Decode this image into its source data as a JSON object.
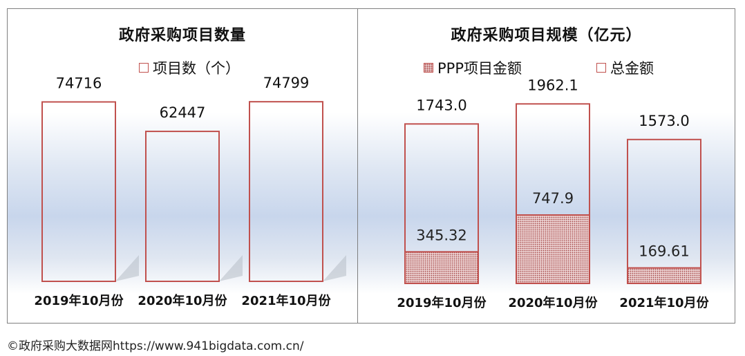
{
  "footer": {
    "text": "©政府采购大数据网https://www.941bigdata.com.cn/"
  },
  "colors": {
    "bar_outline": "#c0504d",
    "ppp_fill": "#c08080"
  },
  "chart_data": [
    {
      "type": "bar",
      "title": "政府采购项目数量",
      "categories": [
        "2019年10月份",
        "2020年10月份",
        "2021年10月份"
      ],
      "series": [
        {
          "name": "项目数（个）",
          "values": [
            74716,
            62447,
            74799
          ],
          "labels": [
            "74716",
            "62447",
            "74799"
          ]
        }
      ],
      "ylim": [
        0,
        95000
      ],
      "grid": false,
      "legend": "top-center"
    },
    {
      "type": "bar",
      "title": "政府采购项目规模（亿元）",
      "categories": [
        "2019年10月份",
        "2020年10月份",
        "2021年10月份"
      ],
      "series": [
        {
          "name": "PPP项目金额",
          "values": [
            345.32,
            747.9,
            169.61
          ],
          "labels": [
            "345.32",
            "747.9",
            "169.61"
          ]
        },
        {
          "name": "总金额",
          "values": [
            1743.0,
            1962.1,
            1573.0
          ],
          "labels": [
            "1743.0",
            "1962.1",
            "1573.0"
          ]
        }
      ],
      "ylim": [
        0,
        3400
      ],
      "grid": false,
      "legend": "top-center"
    }
  ]
}
